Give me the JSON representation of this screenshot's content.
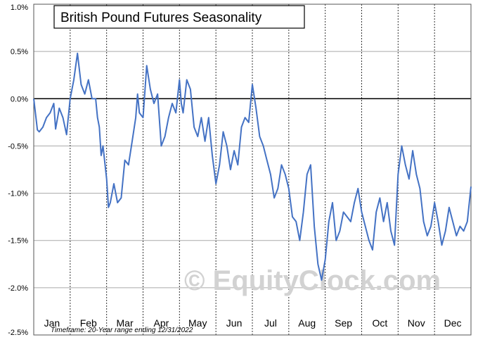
{
  "chart_data": {
    "type": "line",
    "title": "British Pound Futures Seasonality",
    "xlabel": "",
    "ylabel": "",
    "ylim": [
      -2.5,
      1.0
    ],
    "yticks": [
      1.0,
      0.5,
      0.0,
      -0.5,
      -1.0,
      -1.5,
      -2.0,
      -2.5
    ],
    "ytick_labels": [
      "1.0%",
      "0.5%",
      "0.0%",
      "-0.5%",
      "-1.0%",
      "-1.5%",
      "-2.0%",
      "-2.5%"
    ],
    "months": [
      "Jan",
      "Feb",
      "Mar",
      "Apr",
      "May",
      "Jun",
      "Jul",
      "Aug",
      "Sep",
      "Oct",
      "Nov",
      "Dec"
    ],
    "footnote": "Timeframe: 20-Year range ending 12/31/2022",
    "watermark": "© EquityClock.com",
    "grid": true,
    "line_color": "#4472c4",
    "series": [
      {
        "x": [
          0.0,
          0.1,
          0.15,
          0.25,
          0.35,
          0.45,
          0.55,
          0.6,
          0.7,
          0.8,
          0.9,
          1.0,
          1.1,
          1.2,
          1.3,
          1.4,
          1.5,
          1.6,
          1.7,
          1.75,
          1.8,
          1.85,
          1.9,
          2.0,
          2.05,
          2.1,
          2.2,
          2.3,
          2.4,
          2.5,
          2.6,
          2.7,
          2.8,
          2.85,
          2.9,
          3.0,
          3.1,
          3.2,
          3.3,
          3.4,
          3.5,
          3.6,
          3.7,
          3.8,
          3.9,
          4.0,
          4.05,
          4.1,
          4.2,
          4.3,
          4.4,
          4.5,
          4.6,
          4.7,
          4.8,
          4.9,
          5.0,
          5.1,
          5.2,
          5.3,
          5.4,
          5.5,
          5.6,
          5.7,
          5.8,
          5.9,
          6.0,
          6.1,
          6.2,
          6.3,
          6.4,
          6.5,
          6.6,
          6.7,
          6.8,
          6.9,
          7.0,
          7.05,
          7.1,
          7.2,
          7.3,
          7.4,
          7.5,
          7.6,
          7.7,
          7.8,
          7.9,
          8.0,
          8.1,
          8.2,
          8.3,
          8.4,
          8.5,
          8.6,
          8.7,
          8.8,
          8.9,
          9.0,
          9.1,
          9.2,
          9.3,
          9.4,
          9.5,
          9.6,
          9.7,
          9.8,
          9.9,
          10.0,
          10.1,
          10.2,
          10.3,
          10.4,
          10.5,
          10.6,
          10.7,
          10.8,
          10.9,
          11.0,
          11.1,
          11.2,
          11.3,
          11.4,
          11.5,
          11.6,
          11.7,
          11.8,
          11.9,
          12.0
        ],
        "y": [
          0.0,
          -0.33,
          -0.35,
          -0.3,
          -0.2,
          -0.15,
          -0.05,
          -0.32,
          -0.1,
          -0.2,
          -0.38,
          0.0,
          0.2,
          0.48,
          0.15,
          0.05,
          0.2,
          0.0,
          0.0,
          -0.2,
          -0.3,
          -0.6,
          -0.5,
          -0.85,
          -1.15,
          -1.1,
          -0.9,
          -1.1,
          -1.05,
          -0.65,
          -0.7,
          -0.45,
          -0.2,
          0.05,
          -0.15,
          -0.2,
          0.35,
          0.1,
          -0.05,
          0.05,
          -0.5,
          -0.4,
          -0.2,
          -0.05,
          -0.15,
          0.2,
          -0.05,
          -0.15,
          0.2,
          0.1,
          -0.3,
          -0.4,
          -0.2,
          -0.45,
          -0.2,
          -0.6,
          -0.9,
          -0.7,
          -0.35,
          -0.5,
          -0.75,
          -0.55,
          -0.7,
          -0.3,
          -0.2,
          -0.25,
          0.15,
          -0.1,
          -0.4,
          -0.5,
          -0.65,
          -0.8,
          -1.05,
          -0.95,
          -0.7,
          -0.8,
          -0.95,
          -1.1,
          -1.25,
          -1.3,
          -1.5,
          -1.2,
          -0.8,
          -0.7,
          -1.35,
          -1.75,
          -1.92,
          -1.7,
          -1.3,
          -1.1,
          -1.5,
          -1.4,
          -1.2,
          -1.25,
          -1.3,
          -1.1,
          -0.95,
          -1.2,
          -1.35,
          -1.5,
          -1.6,
          -1.2,
          -1.05,
          -1.3,
          -1.1,
          -1.4,
          -1.55,
          -0.8,
          -0.5,
          -0.7,
          -0.85,
          -0.55,
          -0.8,
          -0.95,
          -1.3,
          -1.45,
          -1.35,
          -1.1,
          -1.3,
          -1.55,
          -1.4,
          -1.15,
          -1.3,
          -1.45,
          -1.35,
          -1.4,
          -1.3,
          -0.93
        ]
      }
    ]
  }
}
